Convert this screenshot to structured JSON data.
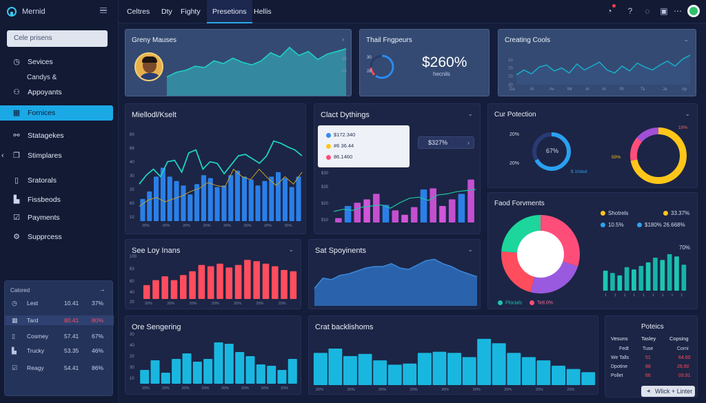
{
  "colors": {
    "accent": "#1ba9e6",
    "bar_blue": "#2a7fe8",
    "bar_red": "#ff4d5e",
    "bar_pink": "#d055d8",
    "bar_cyan": "#19b7df",
    "teal": "#1cc6b3",
    "yellow": "#ffc61a"
  },
  "brand": {
    "name": "Mernid"
  },
  "sidebar": {
    "search_placeholder": "Cele prisens",
    "items": [
      {
        "label": "Sevices",
        "icon": "clock-icon"
      },
      {
        "label": "Appoyants",
        "icon": "people-icon",
        "sub": "Candys &"
      },
      {
        "label": "Fornices",
        "icon": "grid-icon"
      },
      {
        "label": "Statagekes",
        "icon": "share-icon"
      },
      {
        "label": "Stimplares",
        "icon": "layers-icon"
      },
      {
        "label": "Sratorals",
        "icon": "phone-icon"
      },
      {
        "label": "Fissbeods",
        "icon": "chart-icon"
      },
      {
        "label": "Payments",
        "icon": "check-square-icon"
      },
      {
        "label": "Supprcess",
        "icon": "gear-icon"
      }
    ],
    "table": {
      "header": "Calored",
      "rows": [
        {
          "name": "Lest",
          "v1": "10.41",
          "v2": "37%"
        },
        {
          "name": "Tard",
          "v1": "80.41",
          "v2": "80%"
        },
        {
          "name": "Cosmey",
          "v1": "57.41",
          "v2": "67%"
        },
        {
          "name": "Trucky",
          "v1": "53.35",
          "v2": "46%"
        },
        {
          "name": "Reagy",
          "v1": "54.41",
          "v2": "86%"
        }
      ]
    }
  },
  "topbar": {
    "tabs": [
      "Celtres",
      "Dty",
      "Fighty",
      "Presetions",
      "Hellis"
    ],
    "active_tab": "Presetions"
  },
  "panels": {
    "p1": {
      "title": "Greny Mauses"
    },
    "p2": {
      "title": "Thail Fngpeurs",
      "value": "$260%",
      "sub": "hecnils",
      "ring_left": "30",
      "ring_left2": "28"
    },
    "p3": {
      "title": "Creating Cools"
    },
    "p4": {
      "title": "Miellodl/Kselt"
    },
    "p5": {
      "title": "Clact Dythings",
      "card_rows": [
        "$172.340",
        "#6 36.44",
        "86.1460"
      ],
      "pill": "$327%"
    },
    "p6": {
      "title": "Cur Potection",
      "donut1_center": "67%",
      "donut1_top": "20%",
      "donut1_bottom": "20%",
      "donut1_legend": "$ 10ded",
      "donut2_left": "50%",
      "donut2_right": "10%"
    },
    "p7": {
      "title": "See Loy Inans"
    },
    "p8": {
      "title": "Sat Spoyinents"
    },
    "p9": {
      "title": "Faod Forvments",
      "legend": [
        {
          "name": "Shotrels",
          "val": "33.37%"
        },
        {
          "name": "10.5%",
          "val": "$180%"
        },
        {
          "pct": "26.668%"
        }
      ],
      "right_label": "70%",
      "foot_left": "Plocials",
      "foot_right": "Tetl.0%"
    },
    "p10": {
      "title": "Ore Sengering"
    },
    "p11": {
      "title": "Crat backlishoms"
    },
    "p12": {
      "title": "Poteics",
      "headers": [
        "Vesuns",
        "Tasley",
        "Copsing"
      ],
      "rows": [
        {
          "a": "Fedt",
          "b": "Tuse",
          "c": "Corni"
        },
        {
          "a": "We Talls",
          "b": "51",
          "c": "64.60"
        },
        {
          "a": "Dpotine",
          "b": "88",
          "c": "26.60"
        },
        {
          "a": "Pollet",
          "b": "66",
          "c": "03.91"
        }
      ],
      "button": "Wlick + Linter"
    }
  },
  "chart_data": [
    {
      "type": "area",
      "title": "Greny Mauses",
      "x": [
        0,
        1,
        2,
        3,
        4,
        5,
        6,
        7,
        8,
        9,
        10,
        11,
        12,
        13,
        14,
        15,
        16,
        17,
        18,
        19
      ],
      "values": [
        28,
        35,
        38,
        44,
        42,
        52,
        48,
        56,
        50,
        46,
        52,
        64,
        58,
        72,
        60,
        66,
        54,
        62,
        66,
        70
      ]
    },
    {
      "type": "area",
      "title": "Creating Cools",
      "x": [
        0,
        1,
        2,
        3,
        4,
        5,
        6,
        7,
        8,
        9,
        10,
        11,
        12,
        13,
        14,
        15,
        16,
        17,
        18,
        19,
        20,
        21,
        22,
        23
      ],
      "values": [
        20,
        30,
        22,
        36,
        40,
        28,
        34,
        24,
        42,
        30,
        38,
        46,
        30,
        24,
        38,
        28,
        44,
        36,
        30,
        40,
        48,
        38,
        52,
        60
      ]
    },
    {
      "type": "bar",
      "title": "Miellodl/Kselt",
      "values": [
        30,
        40,
        60,
        72,
        60,
        54,
        48,
        36,
        50,
        62,
        58,
        46,
        48,
        62,
        68,
        60,
        56,
        48,
        54,
        60,
        66,
        58,
        46,
        60
      ],
      "line": [
        50,
        62,
        70,
        60,
        80,
        82,
        66,
        92,
        96,
        70,
        80,
        78,
        64,
        76,
        88,
        90,
        84,
        78,
        88,
        108,
        105,
        100,
        96,
        88
      ],
      "line2": [
        20,
        28,
        32,
        26,
        30,
        34,
        40,
        44,
        52,
        48,
        46,
        70,
        60,
        56,
        70,
        58,
        48,
        60,
        50,
        66
      ]
    },
    {
      "type": "bar",
      "title": "Clact Dythings",
      "values": [
        8,
        30,
        36,
        42,
        52,
        32,
        22,
        14,
        28,
        60,
        62,
        30,
        42,
        52,
        78
      ],
      "line": [
        20,
        24,
        22,
        28,
        30,
        32,
        26,
        36,
        44,
        46,
        40,
        50,
        52,
        56,
        58,
        60
      ]
    },
    {
      "type": "bar",
      "title": "See Loy Inans",
      "values": [
        22,
        30,
        36,
        30,
        38,
        44,
        54,
        52,
        56,
        50,
        54,
        62,
        60,
        56,
        52,
        46,
        44
      ]
    },
    {
      "type": "area",
      "title": "Sat Spoyinents",
      "values": [
        24,
        38,
        36,
        42,
        44,
        48,
        52,
        54,
        54,
        58,
        52,
        50,
        56,
        62,
        64,
        58,
        54,
        48,
        44,
        40
      ]
    },
    {
      "type": "bar",
      "title": "Faod Forvments",
      "values": [
        34,
        30,
        26,
        40,
        36,
        42,
        48,
        56,
        52,
        62,
        58,
        44
      ]
    },
    {
      "type": "bar",
      "title": "Ore Sengering",
      "values": [
        20,
        34,
        16,
        36,
        44,
        32,
        36,
        60,
        58,
        46,
        40,
        28,
        26,
        20,
        36
      ]
    },
    {
      "type": "bar",
      "title": "Crat backlishoms",
      "values": [
        60,
        68,
        54,
        58,
        46,
        38,
        40,
        60,
        62,
        60,
        52,
        86,
        78,
        60,
        52,
        46,
        36,
        30,
        24
      ]
    },
    {
      "type": "pie",
      "title": "Cur Potection",
      "series": [
        {
          "name": "a",
          "values": [
            67,
            33
          ]
        }
      ]
    },
    {
      "type": "pie",
      "title": "Faod Forvments",
      "series": [
        {
          "name": "a",
          "values": [
            30,
            24,
            22,
            24
          ]
        }
      ]
    }
  ]
}
